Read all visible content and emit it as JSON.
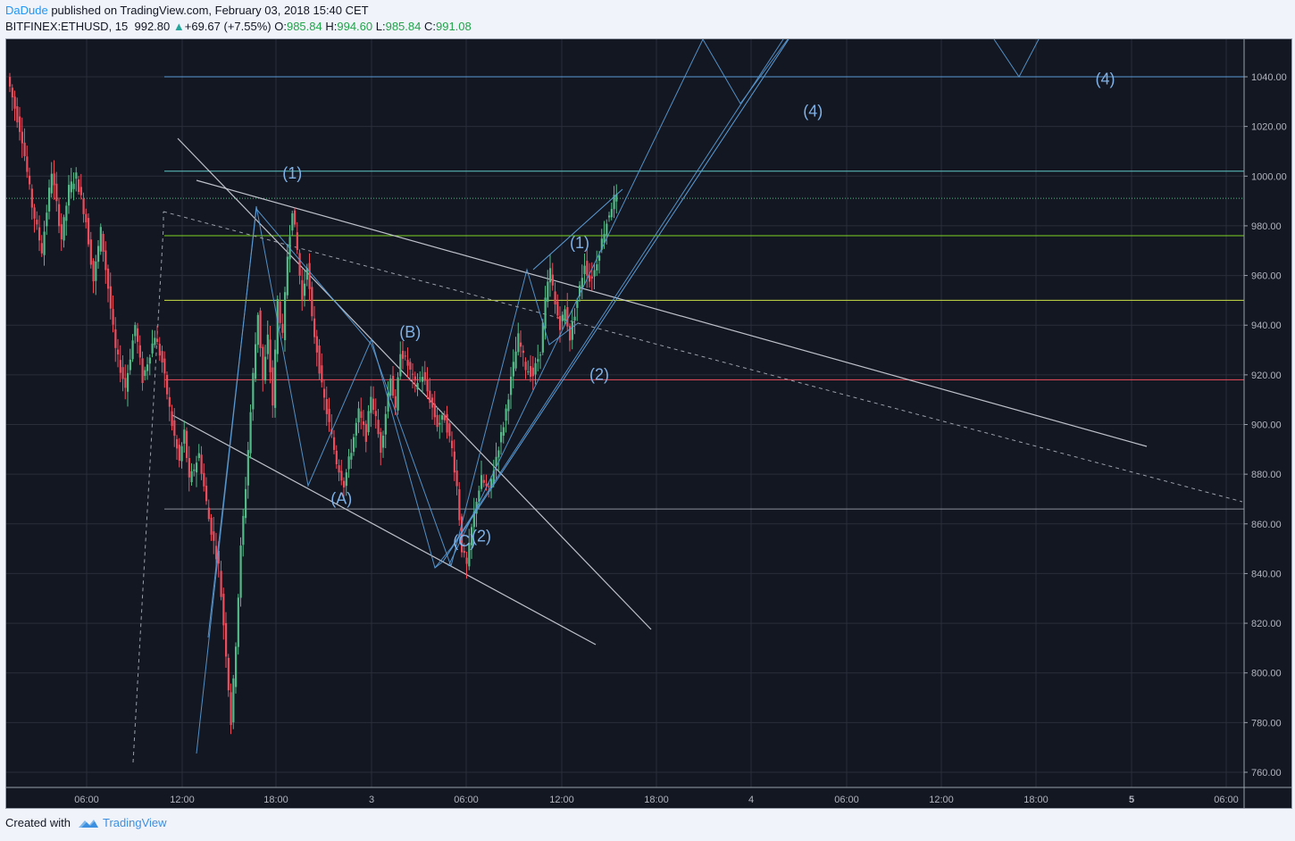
{
  "header": {
    "author": "DaDude",
    "published_text": " published on TradingView.com, February 03, 2018 15:40 CET",
    "symbol": "BITFINEX:ETHUSD, 15",
    "price": "992.80",
    "change_arrow": "▲",
    "change": "+69.67 (+7.55%)",
    "o_label": "O:",
    "o_value": "985.84",
    "h_label": "H:",
    "h_value": "994.60",
    "l_label": "L:",
    "l_value": "985.84",
    "c_label": "C:",
    "c_value": "991.08"
  },
  "footer": {
    "created_with": "Created with",
    "brand": "TradingView",
    "brand_icon": "tradingview-logo-icon"
  },
  "colors": {
    "background": "#131722",
    "grid": "#2a2e39",
    "up": "#53b987",
    "down": "#eb4d5c",
    "wave": "#5b9cd6",
    "trend": "#d1d4dc"
  },
  "chart_data": {
    "type": "candlestick",
    "symbol": "BITFINEX:ETHUSD",
    "interval": "15",
    "y_ticks": [
      "1040.00",
      "1020.00",
      "1000.00",
      "980.00",
      "960.00",
      "940.00",
      "920.00",
      "900.00",
      "880.00",
      "860.00",
      "840.00",
      "820.00",
      "800.00",
      "780.00",
      "760.00"
    ],
    "ylim": [
      755,
      1060
    ],
    "x_ticks": [
      "06:00",
      "12:00",
      "18:00",
      "3",
      "06:00",
      "12:00",
      "18:00",
      "4",
      "06:00",
      "12:00",
      "18:00",
      "5",
      "06:00"
    ],
    "x_ticks_bold": [
      false,
      false,
      false,
      false,
      false,
      false,
      false,
      false,
      false,
      false,
      false,
      true,
      false
    ],
    "last_price": 991.08,
    "candle_path": [
      [
        0,
        1040
      ],
      [
        6,
        1015
      ],
      [
        10,
        988
      ],
      [
        14,
        970
      ],
      [
        18,
        1002
      ],
      [
        22,
        975
      ],
      [
        25,
        995
      ],
      [
        28,
        1000
      ],
      [
        32,
        982
      ],
      [
        35,
        958
      ],
      [
        38,
        978
      ],
      [
        41,
        955
      ],
      [
        44,
        930
      ],
      [
        48,
        915
      ],
      [
        52,
        940
      ],
      [
        55,
        918
      ],
      [
        60,
        936
      ],
      [
        63,
        925
      ],
      [
        67,
        900
      ],
      [
        70,
        885
      ],
      [
        72,
        897
      ],
      [
        74,
        877
      ],
      [
        78,
        888
      ],
      [
        82,
        862
      ],
      [
        86,
        843
      ],
      [
        89,
        808
      ],
      [
        91,
        780
      ],
      [
        93,
        812
      ],
      [
        95,
        850
      ],
      [
        97,
        875
      ],
      [
        100,
        920
      ],
      [
        102,
        945
      ],
      [
        104,
        918
      ],
      [
        106,
        935
      ],
      [
        108,
        908
      ],
      [
        110,
        950
      ],
      [
        112,
        935
      ],
      [
        114,
        968
      ],
      [
        116,
        987
      ],
      [
        118,
        970
      ],
      [
        120,
        950
      ],
      [
        122,
        965
      ],
      [
        124,
        942
      ],
      [
        126,
        930
      ],
      [
        128,
        915
      ],
      [
        131,
        900
      ],
      [
        134,
        885
      ],
      [
        137,
        876
      ],
      [
        140,
        890
      ],
      [
        143,
        905
      ],
      [
        146,
        895
      ],
      [
        148,
        912
      ],
      [
        150,
        902
      ],
      [
        152,
        890
      ],
      [
        154,
        905
      ],
      [
        156,
        920
      ],
      [
        158,
        905
      ],
      [
        160,
        930
      ],
      [
        163,
        924
      ],
      [
        166,
        916
      ],
      [
        169,
        920
      ],
      [
        172,
        910
      ],
      [
        175,
        900
      ],
      [
        178,
        903
      ],
      [
        181,
        890
      ],
      [
        183,
        875
      ],
      [
        185,
        850
      ],
      [
        187,
        843
      ],
      [
        189,
        858
      ],
      [
        191,
        870
      ],
      [
        193,
        878
      ],
      [
        196,
        873
      ],
      [
        199,
        887
      ],
      [
        202,
        900
      ],
      [
        205,
        918
      ],
      [
        208,
        935
      ],
      [
        211,
        923
      ],
      [
        214,
        920
      ],
      [
        217,
        930
      ],
      [
        219,
        950
      ],
      [
        221,
        962
      ],
      [
        223,
        948
      ],
      [
        225,
        940
      ],
      [
        227,
        946
      ],
      [
        229,
        935
      ],
      [
        231,
        945
      ],
      [
        233,
        955
      ],
      [
        235,
        965
      ],
      [
        237,
        958
      ],
      [
        239,
        962
      ],
      [
        241,
        970
      ],
      [
        243,
        978
      ],
      [
        245,
        985
      ],
      [
        247,
        991
      ]
    ],
    "wave_labels": [
      {
        "text": "(1)",
        "price": 999,
        "candle": 115
      },
      {
        "text": "(A)",
        "price": 868,
        "candle": 135
      },
      {
        "text": "(B)",
        "price": 935,
        "candle": 163
      },
      {
        "text": "(C)",
        "price": 851,
        "candle": 185
      },
      {
        "text": "(2)",
        "price": 853,
        "candle": 192
      },
      {
        "text": "(1)",
        "price": 971,
        "candle": 232
      },
      {
        "text": "(2)",
        "price": 918,
        "candle": 240
      },
      {
        "text": "(4)",
        "price": 1024,
        "candle": 327
      },
      {
        "text": "(4)",
        "price": 1037,
        "candle": 446
      }
    ],
    "horizontal_levels": [
      {
        "price": 1040,
        "color": "#5b9cd6"
      },
      {
        "price": 1002,
        "color": "#5fc8c8"
      },
      {
        "price": 991.08,
        "color": "#53b987",
        "dotted": true
      },
      {
        "price": 976,
        "color": "#7ed321"
      },
      {
        "price": 950,
        "color": "#cbe148"
      },
      {
        "price": 918,
        "color": "#eb4d5c"
      },
      {
        "price": 866,
        "color": "#8a8e99"
      }
    ]
  }
}
